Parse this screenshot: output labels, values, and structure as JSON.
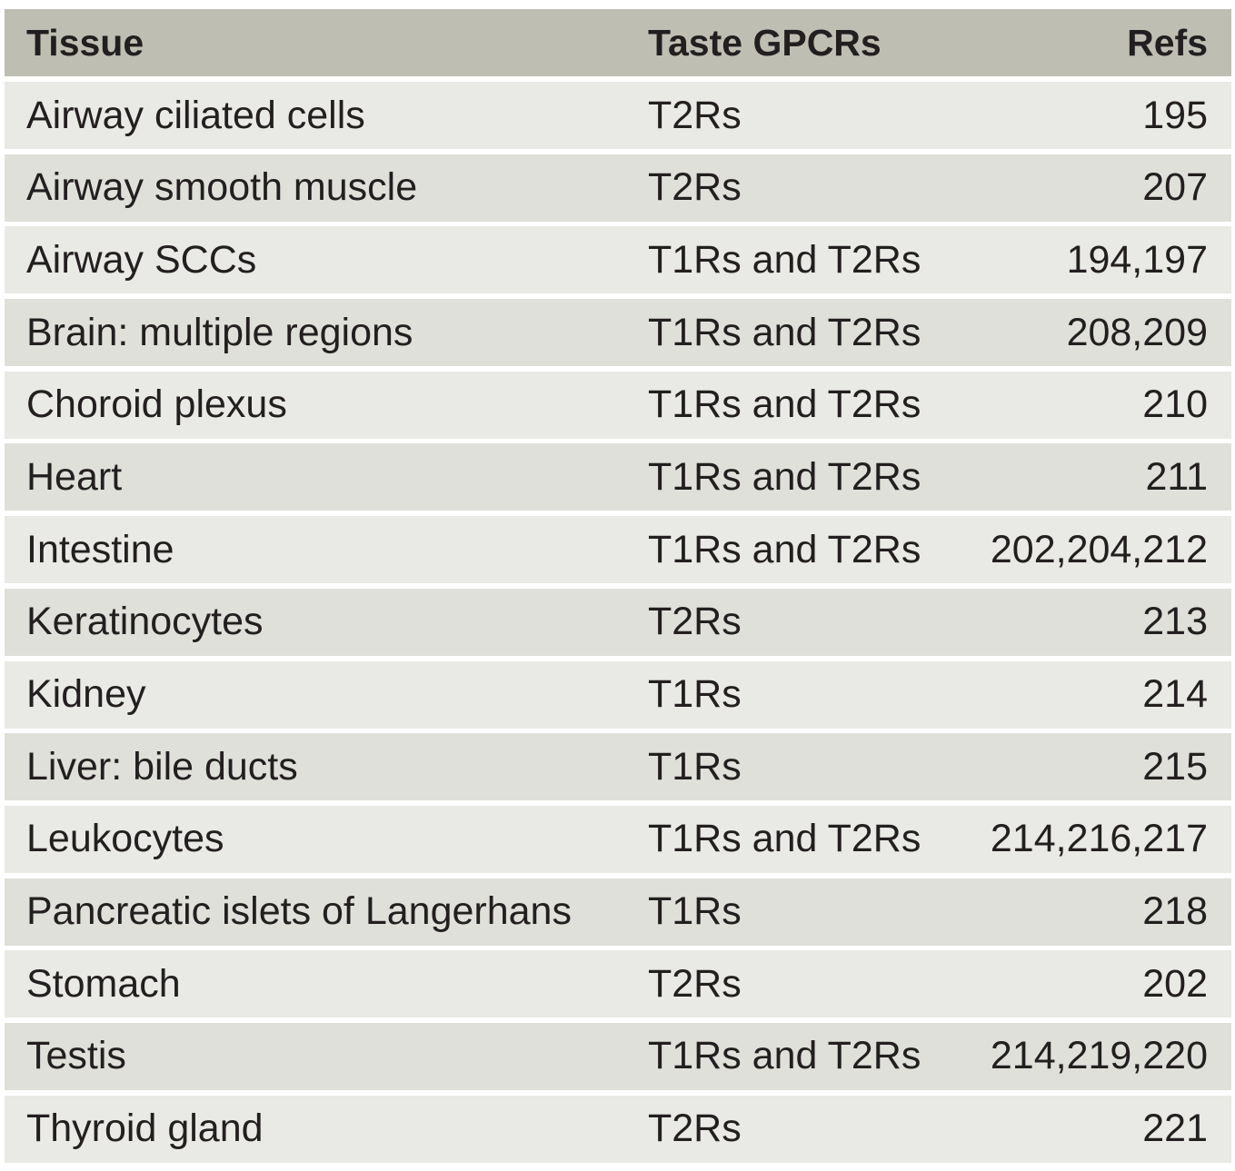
{
  "header": {
    "tissue": "Tissue",
    "gpcrs": "Taste GPCRs",
    "refs": "Refs"
  },
  "rows": [
    {
      "tissue": "Airway ciliated cells",
      "gpcrs": "T2Rs",
      "refs": "195"
    },
    {
      "tissue": "Airway smooth muscle",
      "gpcrs": "T2Rs",
      "refs": "207"
    },
    {
      "tissue": "Airway SCCs",
      "gpcrs": "T1Rs and T2Rs",
      "refs": "194,197"
    },
    {
      "tissue": "Brain: multiple regions",
      "gpcrs": "T1Rs and T2Rs",
      "refs": "208,209"
    },
    {
      "tissue": "Choroid plexus",
      "gpcrs": "T1Rs and T2Rs",
      "refs": "210"
    },
    {
      "tissue": "Heart",
      "gpcrs": "T1Rs and T2Rs",
      "refs": "211"
    },
    {
      "tissue": "Intestine",
      "gpcrs": "T1Rs and T2Rs",
      "refs": "202,204,212"
    },
    {
      "tissue": "Keratinocytes",
      "gpcrs": "T2Rs",
      "refs": "213"
    },
    {
      "tissue": "Kidney",
      "gpcrs": "T1Rs",
      "refs": "214"
    },
    {
      "tissue": "Liver: bile ducts",
      "gpcrs": "T1Rs",
      "refs": "215"
    },
    {
      "tissue": "Leukocytes",
      "gpcrs": "T1Rs and T2Rs",
      "refs": "214,216,217"
    },
    {
      "tissue": "Pancreatic islets of Langerhans",
      "gpcrs": "T1Rs",
      "refs": "218"
    },
    {
      "tissue": "Stomach",
      "gpcrs": "T2Rs",
      "refs": "202"
    },
    {
      "tissue": "Testis",
      "gpcrs": "T1Rs and T2Rs",
      "refs": "214,219,220"
    },
    {
      "tissue": "Thyroid gland",
      "gpcrs": "T2Rs",
      "refs": "221"
    }
  ],
  "colors": {
    "header_bg": "#bebfb2",
    "row_light": "#e9e9e5",
    "row_dark": "#dfe0da",
    "text": "#231f20"
  }
}
